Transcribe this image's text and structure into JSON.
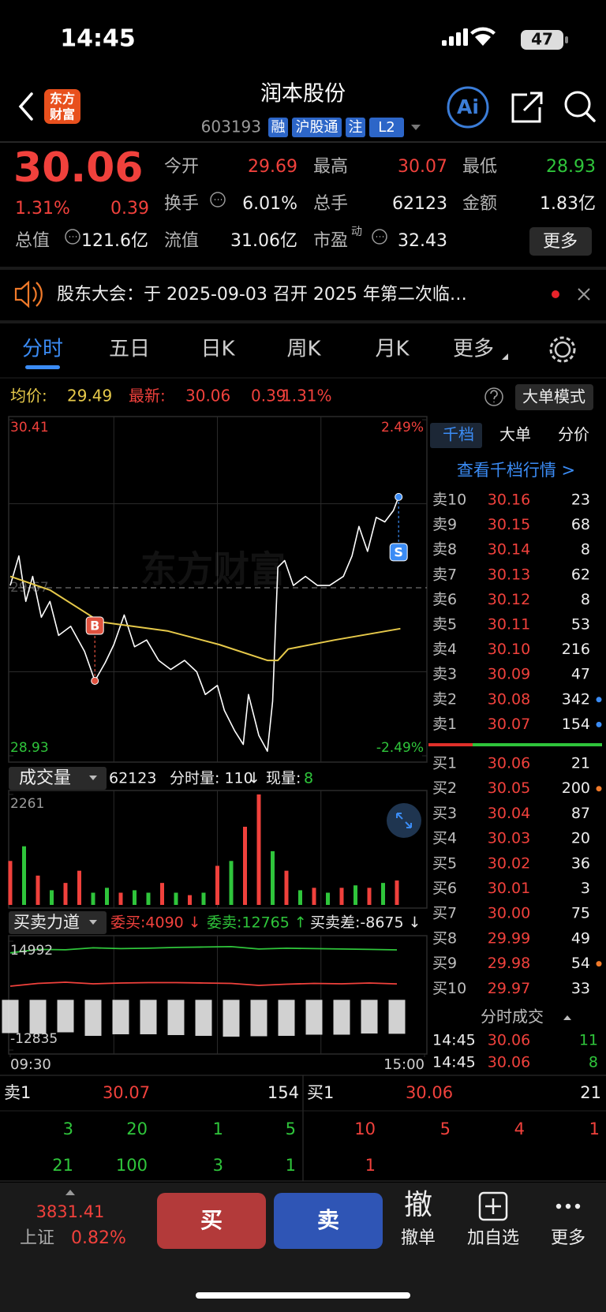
{
  "status_bar": {
    "time": "14:45",
    "battery": "47"
  },
  "header": {
    "logo": [
      "东方",
      "财富"
    ],
    "title": "润本股份",
    "code": "603193",
    "tags": [
      "融",
      "沪股通",
      "注",
      "L2"
    ],
    "ai": "Ai"
  },
  "quote": {
    "price": "30.06",
    "change_pct": "1.31%",
    "change": "0.39",
    "more": "更多",
    "fields": [
      {
        "label": "今开",
        "value": "29.69",
        "color": "#f0413c"
      },
      {
        "label": "最高",
        "value": "30.07",
        "color": "#f0413c"
      },
      {
        "label": "最低",
        "value": "28.93",
        "color": "#2fc53b"
      },
      {
        "label": "换手",
        "value": "6.01%"
      },
      {
        "label": "总手",
        "value": "62123"
      },
      {
        "label": "金额",
        "value": "1.83亿"
      },
      {
        "label": "总值",
        "value": "121.6亿"
      },
      {
        "label": "流值",
        "value": "31.06亿"
      },
      {
        "label": "市盈",
        "sup": "动",
        "value": "32.43"
      }
    ]
  },
  "notice": "股东大会：于 2025-09-03 召开 2025 年第二次临…",
  "tabs": [
    "分时",
    "五日",
    "日K",
    "周K",
    "月K",
    "更多"
  ],
  "summary": {
    "avg_label": "均价:",
    "avg": "29.49",
    "last_label": "最新:",
    "last": "30.06",
    "change": "0.39",
    "change_pct": "1.31%",
    "mode": "大单模式"
  },
  "chart_data": [
    {
      "type": "line",
      "watermark": "东方财富",
      "xlim": [
        0,
        240
      ],
      "xticks": [
        {
          "value": 0,
          "label": "09:30"
        },
        {
          "value": 240,
          "label": "15:00"
        }
      ],
      "ylim": [
        28.93,
        30.41
      ],
      "yticks": [
        28.93,
        29.67,
        30.41
      ],
      "y2lim": [
        -2.49,
        2.49
      ],
      "y2ticks": [
        {
          "value": -2.49,
          "label": "-2.49%"
        },
        {
          "value": 2.49,
          "label": "2.49%"
        }
      ],
      "series": [
        {
          "color": "#ffffff",
          "x": [
            0,
            5,
            9,
            13,
            18,
            23,
            28,
            35,
            43,
            49,
            55,
            60,
            66,
            72,
            79,
            86,
            93,
            101,
            108,
            113,
            120,
            124,
            130,
            135,
            138,
            144,
            149,
            152,
            155,
            159,
            164,
            171,
            178,
            185,
            193,
            198,
            202,
            207,
            212,
            217,
            222,
            225,
            226
          ],
          "values": [
            29.68,
            29.81,
            29.61,
            29.72,
            29.54,
            29.61,
            29.46,
            29.5,
            29.39,
            29.26,
            29.34,
            29.42,
            29.55,
            29.41,
            29.44,
            29.35,
            29.31,
            29.35,
            29.3,
            29.2,
            29.24,
            29.13,
            29.04,
            28.98,
            29.2,
            29.02,
            28.95,
            29.17,
            29.76,
            29.79,
            29.68,
            29.72,
            29.68,
            29.68,
            29.72,
            29.81,
            29.94,
            29.83,
            29.98,
            29.96,
            30.01,
            30.07,
            30.06
          ]
        },
        {
          "color": "#e6c94a",
          "x": [
            0,
            23,
            52,
            91,
            121,
            149,
            155,
            161,
            188,
            226
          ],
          "values": [
            29.72,
            29.66,
            29.52,
            29.48,
            29.42,
            29.35,
            29.35,
            29.4,
            29.44,
            29.49
          ]
        }
      ],
      "trades": [
        {
          "label": "B",
          "x": 49,
          "value": 29.26,
          "color": "#e0523f"
        },
        {
          "label": "S",
          "x": 225,
          "value": 30.07,
          "color": "#3b8cf5"
        }
      ]
    },
    {
      "type": "bar",
      "title": "成交量",
      "total": "62123",
      "period_label": "分时量: 110",
      "period_arrow": "↓",
      "current_label": "现量:",
      "current": "8",
      "xlim": [
        0,
        240
      ],
      "ylim": [
        0,
        2261
      ],
      "yticks": [
        2261
      ],
      "x": [
        0,
        8,
        16,
        24,
        32,
        40,
        48,
        56,
        64,
        72,
        80,
        88,
        96,
        104,
        112,
        120,
        128,
        136,
        144,
        152,
        160,
        168,
        176,
        184,
        192,
        200,
        208,
        216,
        224
      ],
      "values": [
        900,
        1200,
        600,
        300,
        450,
        700,
        250,
        350,
        250,
        300,
        250,
        450,
        250,
        200,
        250,
        800,
        900,
        1600,
        2261,
        1100,
        700,
        300,
        350,
        250,
        350,
        400,
        350,
        450,
        500
      ],
      "colors": [
        "#f0413c",
        "#2fc53b",
        "#f0413c",
        "#2fc53b",
        "#f0413c",
        "#f0413c",
        "#2fc53b",
        "#2fc53b",
        "#f0413c",
        "#2fc53b",
        "#2fc53b",
        "#f0413c",
        "#2fc53b",
        "#f0413c",
        "#2fc53b",
        "#f0413c",
        "#2fc53b",
        "#f0413c",
        "#f0413c",
        "#2fc53b",
        "#f0413c",
        "#2fc53b",
        "#f0413c",
        "#2fc53b",
        "#f0413c",
        "#2fc53b",
        "#f0413c",
        "#2fc53b",
        "#f0413c"
      ]
    },
    {
      "type": "line",
      "title": "买卖力道",
      "xlim": [
        0,
        240
      ],
      "ylim": [
        -12835,
        14992
      ],
      "yticks": [
        -12835,
        14992
      ],
      "x": [
        0,
        16,
        32,
        48,
        64,
        80,
        96,
        112,
        128,
        144,
        160,
        176,
        192,
        208,
        224
      ],
      "series": [
        {
          "legend": "委买:4090 ↓",
          "color": "#f0413c",
          "values": [
            3500,
            4200,
            4500,
            4100,
            4300,
            4400,
            4400,
            4300,
            4200,
            3700,
            4000,
            4200,
            4100,
            4300,
            4090
          ]
        },
        {
          "legend": "委卖:12765 ↑",
          "color": "#2fc53b",
          "values": [
            12000,
            12900,
            12800,
            13300,
            13100,
            13200,
            13400,
            13500,
            13600,
            13000,
            13200,
            13100,
            13000,
            12900,
            12765
          ]
        },
        {
          "legend": "买卖差:-8675 ↓",
          "color": "#e8e8e8",
          "kind": "bar",
          "values": [
            -8500,
            -8700,
            -8300,
            -9200,
            -8800,
            -8800,
            -9000,
            -9200,
            -9400,
            -9300,
            -9200,
            -8900,
            -8900,
            -8600,
            -8675
          ]
        }
      ]
    }
  ],
  "order_book": {
    "tabs": [
      "千档",
      "大单",
      "分价"
    ],
    "link": "查看千档行情 >",
    "asks": [
      {
        "label": "卖10",
        "price": "30.16",
        "volume": "23"
      },
      {
        "label": "卖9",
        "price": "30.15",
        "volume": "68"
      },
      {
        "label": "卖8",
        "price": "30.14",
        "volume": "8"
      },
      {
        "label": "卖7",
        "price": "30.13",
        "volume": "62"
      },
      {
        "label": "卖6",
        "price": "30.12",
        "volume": "8"
      },
      {
        "label": "卖5",
        "price": "30.11",
        "volume": "53"
      },
      {
        "label": "卖4",
        "price": "30.10",
        "volume": "216"
      },
      {
        "label": "卖3",
        "price": "30.09",
        "volume": "47"
      },
      {
        "label": "卖2",
        "price": "30.08",
        "volume": "342",
        "marker": "#3b8cf5"
      },
      {
        "label": "卖1",
        "price": "30.07",
        "volume": "154",
        "marker": "#3b8cf5"
      }
    ],
    "bids": [
      {
        "label": "买1",
        "price": "30.06",
        "volume": "21"
      },
      {
        "label": "买2",
        "price": "30.05",
        "volume": "200",
        "marker": "#f07a2a"
      },
      {
        "label": "买3",
        "price": "30.04",
        "volume": "87"
      },
      {
        "label": "买4",
        "price": "30.03",
        "volume": "20"
      },
      {
        "label": "买5",
        "price": "30.02",
        "volume": "36"
      },
      {
        "label": "买6",
        "price": "30.01",
        "volume": "3"
      },
      {
        "label": "买7",
        "price": "30.00",
        "volume": "75"
      },
      {
        "label": "买8",
        "price": "29.99",
        "volume": "49"
      },
      {
        "label": "买9",
        "price": "29.98",
        "volume": "54",
        "marker": "#f07a2a"
      },
      {
        "label": "买10",
        "price": "29.97",
        "volume": "33"
      }
    ]
  },
  "trades": {
    "title": "分时成交",
    "rows": [
      [
        "14:45",
        "30.06",
        "11"
      ],
      [
        "14:45",
        "30.06",
        "8"
      ]
    ]
  },
  "level1": {
    "ask": {
      "label": "卖1",
      "price": "30.07",
      "volume": "154",
      "orders": [
        [
          "3",
          "20",
          "1",
          "5"
        ],
        [
          "21",
          "100",
          "3",
          "1"
        ]
      ]
    },
    "bid": {
      "label": "买1",
      "price": "30.06",
      "volume": "21",
      "orders": [
        [
          "10",
          "5",
          "4",
          "1"
        ],
        [
          "1"
        ]
      ]
    }
  },
  "bottom_bar": {
    "index_value": "3831.41",
    "index_name": "上证",
    "index_change": "0.82%",
    "buy": "买",
    "sell": "卖",
    "actions": [
      {
        "icon": "撤",
        "label": "撤单"
      },
      {
        "label": "加自选"
      },
      {
        "label": "更多"
      }
    ]
  }
}
